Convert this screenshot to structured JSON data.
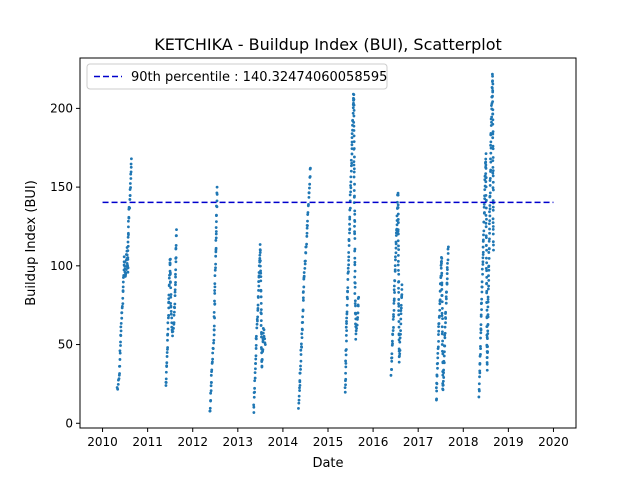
{
  "chart_data": {
    "type": "scatter",
    "title": "KETCHIKA - Buildup Index (BUI), Scatterplot",
    "xlabel": "Date",
    "ylabel": "Buildup Index (BUI)",
    "xlim": [
      2009.5,
      2020.5
    ],
    "ylim": [
      -3,
      232
    ],
    "x_ticks": [
      2010,
      2011,
      2012,
      2013,
      2014,
      2015,
      2016,
      2017,
      2018,
      2019,
      2020
    ],
    "x_tick_labels": [
      "2010",
      "2011",
      "2012",
      "2013",
      "2014",
      "2015",
      "2016",
      "2017",
      "2018",
      "2019",
      "2020"
    ],
    "y_ticks": [
      0,
      50,
      100,
      150,
      200
    ],
    "y_tick_labels": [
      "0",
      "50",
      "100",
      "150",
      "200"
    ],
    "legend_position": "top-left",
    "grid": false,
    "reference_line": {
      "label": "90th percentile : 140.32474060058595",
      "value": 140.32474060058595,
      "color": "#0000cc",
      "style": "dashed"
    },
    "point_color": "#1f77b4",
    "seasons": [
      {
        "year": 2010,
        "segments": [
          [
            2010.33,
            21
          ],
          [
            2010.37,
            30
          ],
          [
            2010.41,
            62
          ],
          [
            2010.45,
            80
          ],
          [
            2010.48,
            105
          ],
          [
            2010.51,
            92
          ],
          [
            2010.54,
            110
          ],
          [
            2010.56,
            97
          ],
          [
            2010.58,
            130
          ],
          [
            2010.61,
            145
          ],
          [
            2010.64,
            168
          ]
        ]
      },
      {
        "year": 2011,
        "segments": [
          [
            2011.4,
            22
          ],
          [
            2011.44,
            50
          ],
          [
            2011.47,
            78
          ],
          [
            2011.5,
            105
          ],
          [
            2011.52,
            70
          ],
          [
            2011.55,
            55
          ],
          [
            2011.58,
            62
          ],
          [
            2011.61,
            85
          ],
          [
            2011.64,
            123
          ]
        ]
      },
      {
        "year": 2012,
        "segments": [
          [
            2012.38,
            7
          ],
          [
            2012.41,
            25
          ],
          [
            2012.44,
            45
          ],
          [
            2012.47,
            55
          ],
          [
            2012.49,
            85
          ],
          [
            2012.52,
            118
          ],
          [
            2012.54,
            150
          ]
        ]
      },
      {
        "year": 2013,
        "segments": [
          [
            2013.35,
            8
          ],
          [
            2013.38,
            28
          ],
          [
            2013.41,
            55
          ],
          [
            2013.44,
            68
          ],
          [
            2013.47,
            95
          ],
          [
            2013.5,
            113
          ],
          [
            2013.53,
            35
          ],
          [
            2013.57,
            60
          ],
          [
            2013.61,
            50
          ]
        ]
      },
      {
        "year": 2014,
        "segments": [
          [
            2014.35,
            10
          ],
          [
            2014.38,
            28
          ],
          [
            2014.41,
            50
          ],
          [
            2014.44,
            68
          ],
          [
            2014.47,
            95
          ],
          [
            2014.5,
            105
          ],
          [
            2014.53,
            120
          ],
          [
            2014.57,
            140
          ],
          [
            2014.61,
            162
          ]
        ]
      },
      {
        "year": 2015,
        "segments": [
          [
            2015.38,
            18
          ],
          [
            2015.41,
            60
          ],
          [
            2015.44,
            88
          ],
          [
            2015.47,
            115
          ],
          [
            2015.49,
            138
          ],
          [
            2015.52,
            165
          ],
          [
            2015.55,
            192
          ],
          [
            2015.57,
            213
          ],
          [
            2015.6,
            82
          ],
          [
            2015.62,
            55
          ],
          [
            2015.65,
            65
          ],
          [
            2015.68,
            80
          ]
        ]
      },
      {
        "year": 2016,
        "segments": [
          [
            2016.4,
            31
          ],
          [
            2016.43,
            50
          ],
          [
            2016.46,
            72
          ],
          [
            2016.49,
            100
          ],
          [
            2016.52,
            120
          ],
          [
            2016.55,
            146
          ],
          [
            2016.58,
            40
          ],
          [
            2016.61,
            60
          ],
          [
            2016.64,
            88
          ]
        ]
      },
      {
        "year": 2017,
        "segments": [
          [
            2017.4,
            14
          ],
          [
            2017.43,
            40
          ],
          [
            2017.46,
            62
          ],
          [
            2017.49,
            85
          ],
          [
            2017.52,
            106
          ],
          [
            2017.55,
            20
          ],
          [
            2017.58,
            45
          ],
          [
            2017.61,
            70
          ],
          [
            2017.64,
            92
          ],
          [
            2017.67,
            112
          ]
        ]
      },
      {
        "year": 2018,
        "segments": [
          [
            2018.35,
            18
          ],
          [
            2018.38,
            45
          ],
          [
            2018.41,
            80
          ],
          [
            2018.44,
            110
          ],
          [
            2018.47,
            140
          ],
          [
            2018.5,
            170
          ],
          [
            2018.53,
            35
          ],
          [
            2018.56,
            90
          ],
          [
            2018.59,
            140
          ],
          [
            2018.62,
            190
          ],
          [
            2018.65,
            222
          ],
          [
            2018.67,
            110
          ]
        ]
      }
    ]
  }
}
